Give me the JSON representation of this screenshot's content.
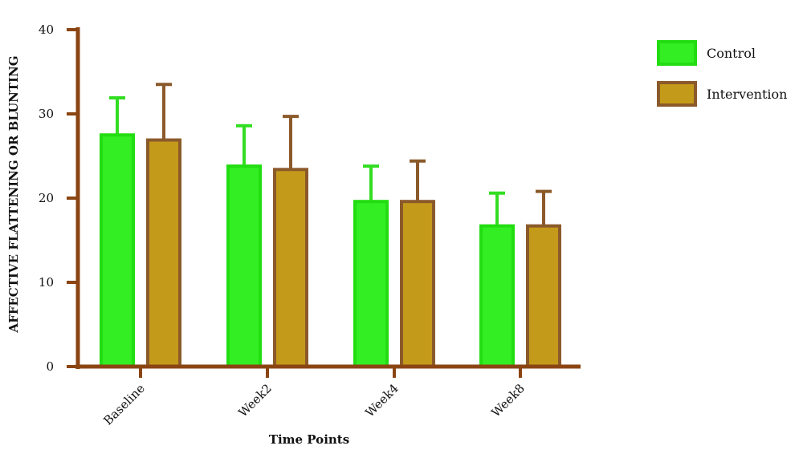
{
  "chart_data": {
    "type": "bar",
    "title": "",
    "xlabel": "Time Points",
    "ylabel": "AFFECTIVE FLATTENING OR BLUNTING",
    "categories": [
      "Baseline",
      "Week2",
      "Week4",
      "Week8"
    ],
    "ylim": [
      0,
      40
    ],
    "yticks": [
      0,
      10,
      20,
      30,
      40
    ],
    "grid": false,
    "legend_position": "top-right",
    "axis_color": "#8B4513",
    "series": [
      {
        "name": "Control",
        "values": [
          27.5,
          23.8,
          19.6,
          16.7
        ],
        "error": [
          4.4,
          4.8,
          4.2,
          3.9
        ],
        "fill": "#33EE22",
        "stroke": "#22DD11",
        "error_color": "#33DD22"
      },
      {
        "name": "Intervention",
        "values": [
          26.9,
          23.4,
          19.6,
          16.7
        ],
        "error": [
          6.6,
          6.3,
          4.8,
          4.1
        ],
        "fill": "#C49A1A",
        "stroke": "#8B5A2B",
        "error_color": "#8B5A2B"
      }
    ]
  }
}
